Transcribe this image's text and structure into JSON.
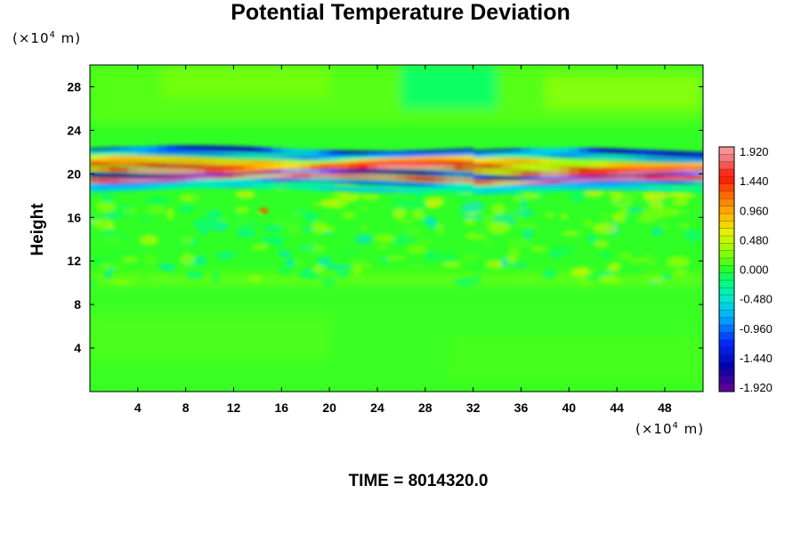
{
  "title": "Potential Temperature Deviation",
  "y_unit": {
    "prefix": "(×10",
    "exp": "4",
    "suffix": " m)"
  },
  "x_unit": {
    "prefix": "(×10",
    "exp": "4",
    "suffix": " m)"
  },
  "ylabel": "Height",
  "time_label": "TIME = 8014320.0",
  "chart_data": {
    "type": "heatmap",
    "title": "Potential Temperature Deviation",
    "xlabel": "",
    "ylabel": "Height",
    "x_unit": "(×10⁴ m)",
    "y_unit": "(×10⁴ m)",
    "xlim": [
      0,
      51.2
    ],
    "ylim": [
      0,
      30
    ],
    "x_ticks": [
      4,
      8,
      12,
      16,
      20,
      24,
      28,
      32,
      36,
      40,
      44,
      48
    ],
    "y_ticks": [
      4,
      8,
      12,
      16,
      20,
      24,
      28
    ],
    "colorbar": {
      "labels": [
        "1.920",
        "1.440",
        "0.960",
        "0.480",
        "0.000",
        "-0.480",
        "-0.960",
        "-1.440",
        "-1.920"
      ],
      "min": -2.0,
      "max": 2.0,
      "levels": 33
    },
    "field_description_values": {
      "background": 0.0,
      "strong_layer_height_range": [
        19.0,
        22.0
      ],
      "disturbed_layer_height_range": [
        9.5,
        19.0
      ]
    }
  }
}
